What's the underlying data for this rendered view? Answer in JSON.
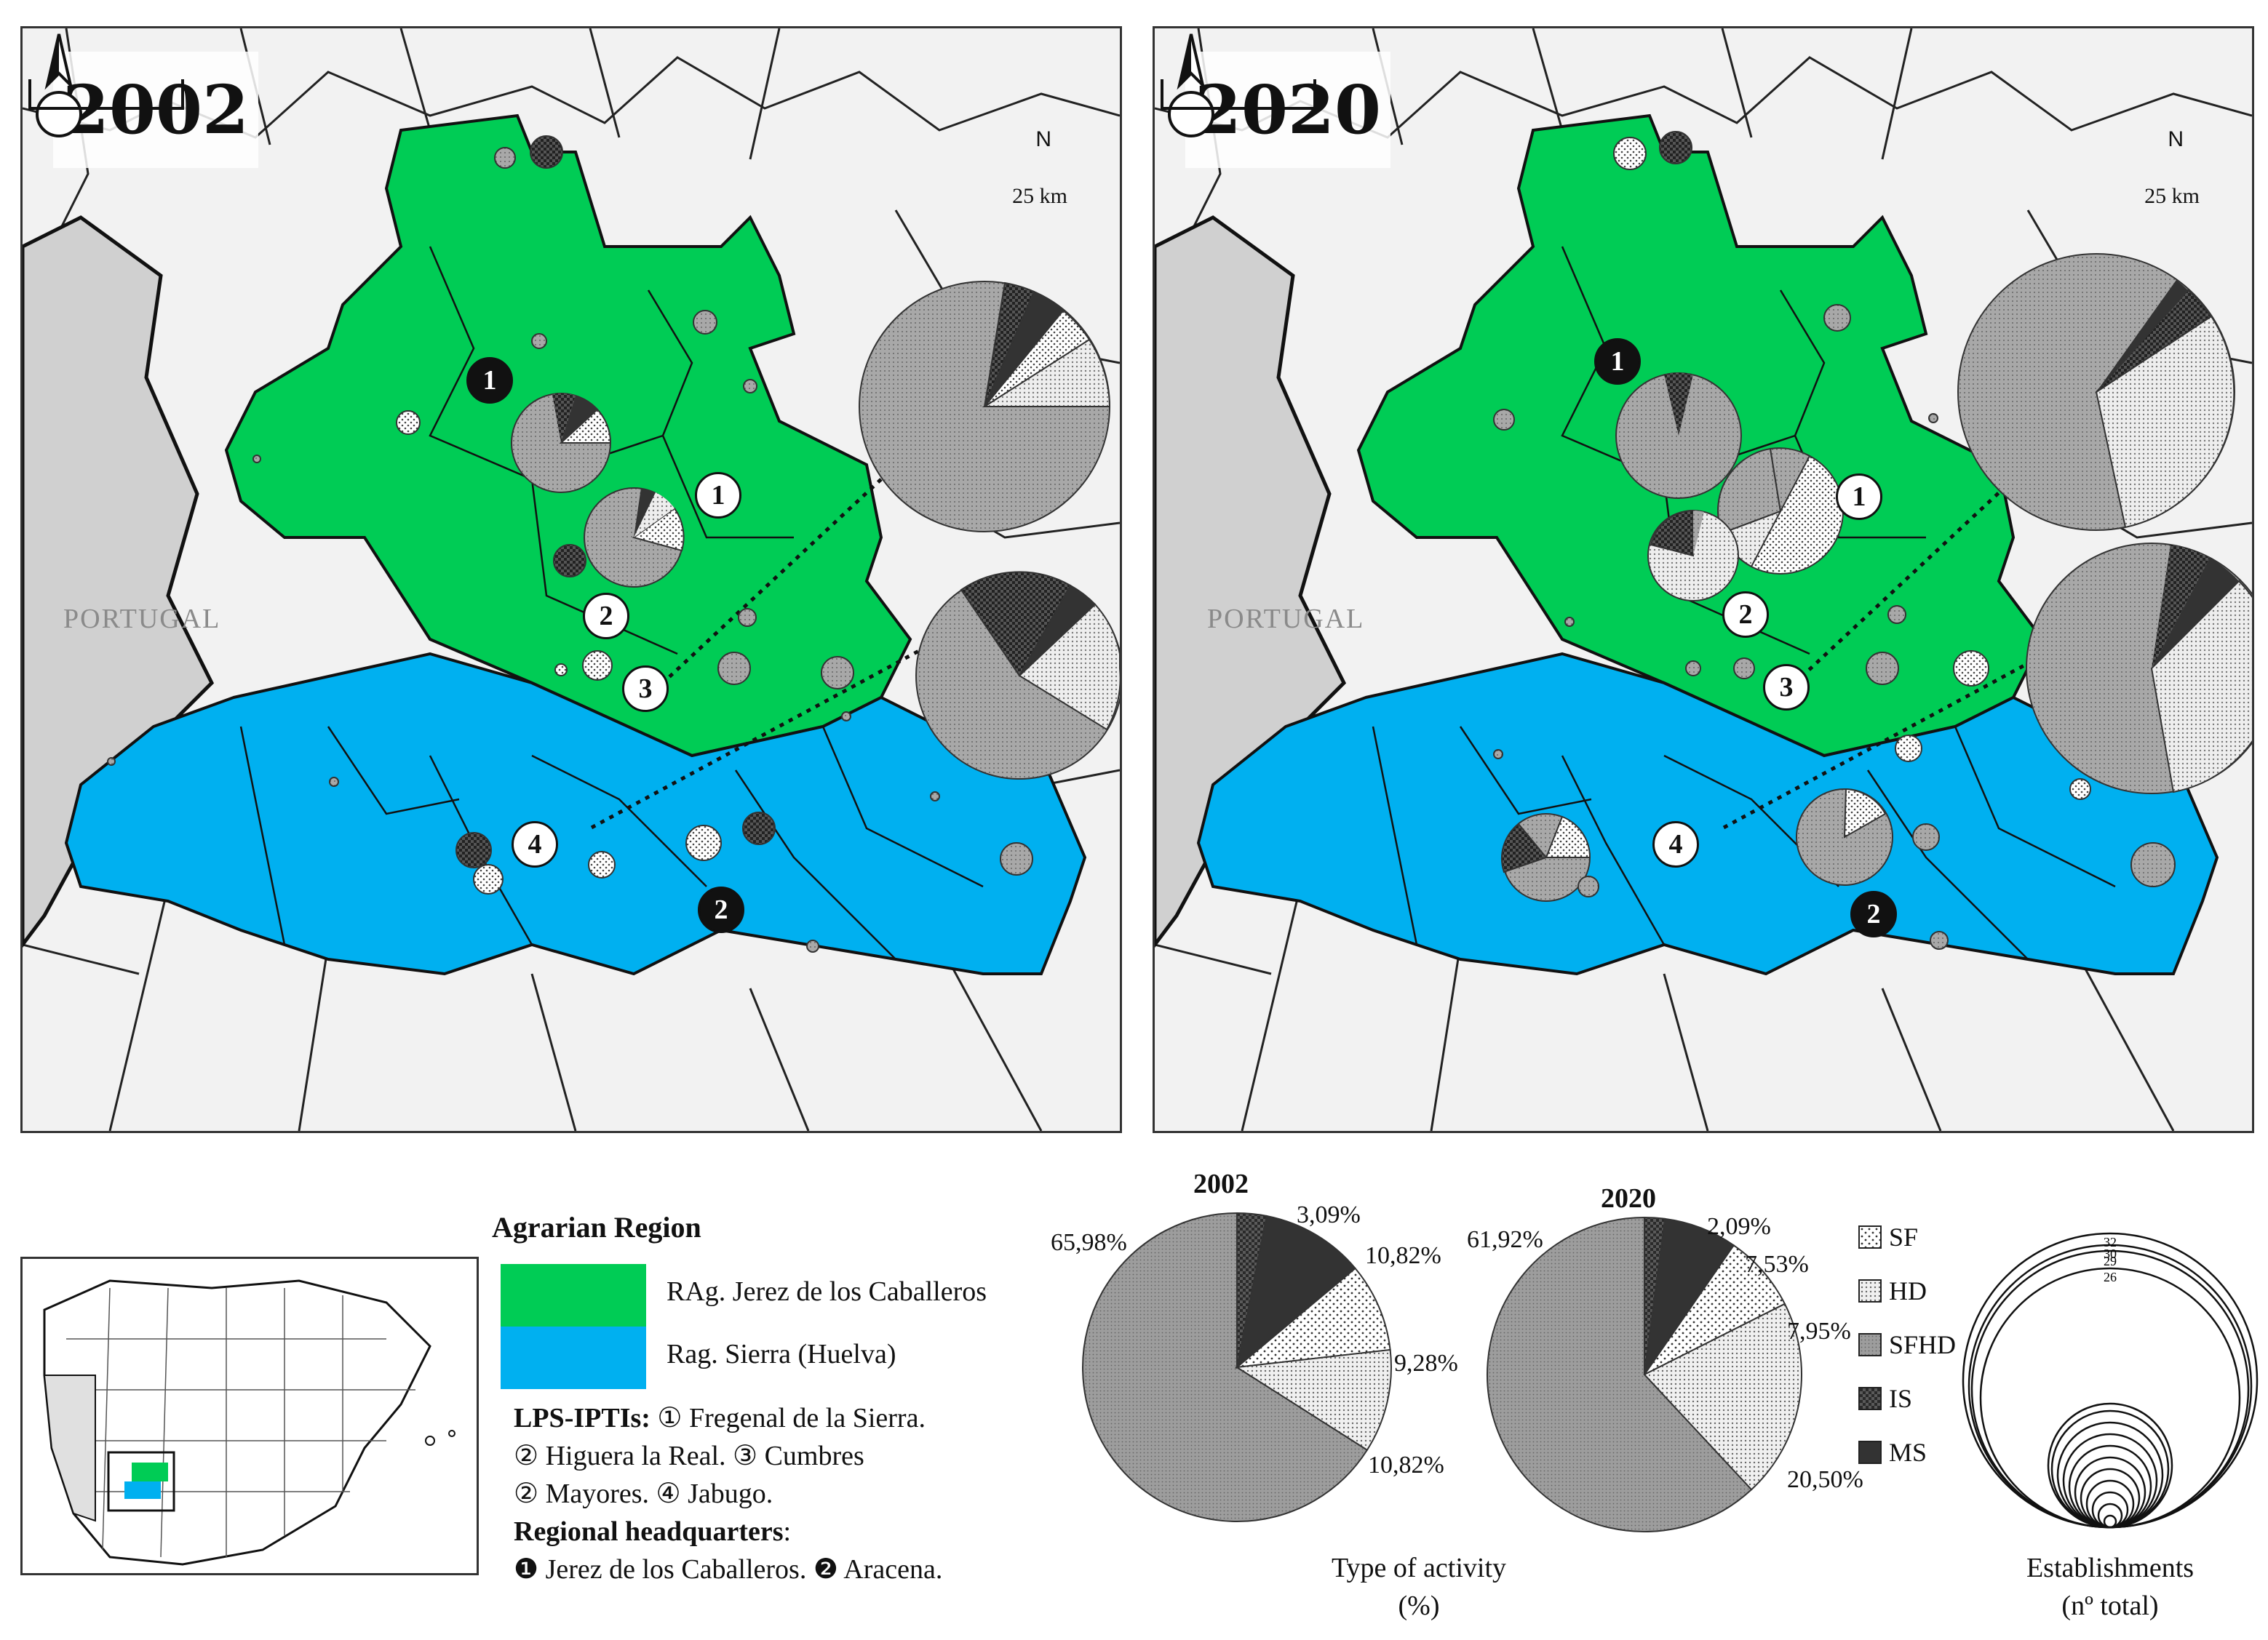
{
  "maps": [
    {
      "year": "2002",
      "country_label": "PORTUGAL",
      "north_label": "N",
      "scale_label": "25 km",
      "lps_markers": [
        "1",
        "2",
        "3",
        "4"
      ],
      "hq_markers": [
        "1",
        "2"
      ]
    },
    {
      "year": "2020",
      "country_label": "PORTUGAL",
      "north_label": "N",
      "scale_label": "25 km",
      "lps_markers": [
        "1",
        "2",
        "3",
        "4"
      ],
      "hq_markers": [
        "1",
        "2"
      ]
    }
  ],
  "legend": {
    "title": "Agrarian Region",
    "regions": [
      {
        "label": "RAg. Jerez de los Caballeros",
        "color": "#00cc55"
      },
      {
        "label": "Rag. Sierra  (Huelva)",
        "color": "#00b0f0"
      }
    ],
    "lps_heading": "LPS-IPTIs:",
    "lps_line1": " ① Fregenal de la Sierra.",
    "lps_line2": "② Higuera la Real.  ③ Cumbres",
    "lps_line3": "② Mayores. ④ Jabugo.",
    "hq_heading": "Regional headquarters",
    "hq_line": "❶ Jerez de los Caballeros. ❷ Aracena."
  },
  "chart_data": [
    {
      "type": "pie",
      "title": "2002",
      "categories": [
        "SFHD",
        "IS",
        "MS",
        "SF",
        "HD"
      ],
      "values": [
        65.98,
        3.09,
        10.82,
        9.28,
        10.82
      ],
      "labels": [
        "65,98%",
        "3,09%",
        "10,82%",
        "9,28%",
        "10,82%"
      ]
    },
    {
      "type": "pie",
      "title": "2020",
      "categories": [
        "SFHD",
        "IS",
        "MS",
        "SF",
        "HD"
      ],
      "values": [
        61.92,
        2.09,
        7.53,
        7.95,
        20.5
      ],
      "labels": [
        "61,92%",
        "2,09%",
        "7,53%",
        "7,95%",
        "20,50%"
      ]
    }
  ],
  "activity_key": [
    "SF",
    "HD",
    "SFHD",
    "IS",
    "MS"
  ],
  "activity_caption": "Type of activity",
  "activity_unit": "(%)",
  "establishments": {
    "caption": "Establishments",
    "unit": "(nº total)",
    "circle_values": [
      "32",
      "30",
      "29",
      "26"
    ]
  }
}
